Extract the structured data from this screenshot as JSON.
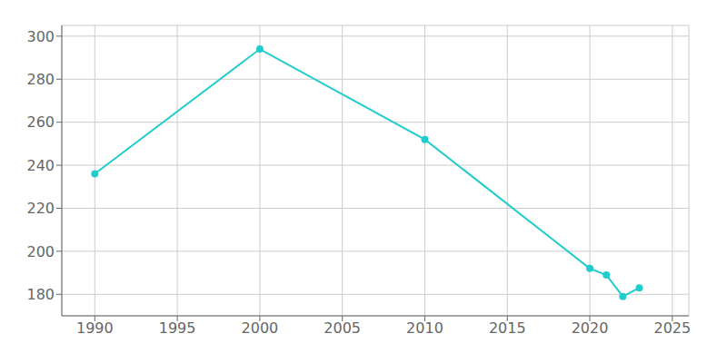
{
  "chart_data": {
    "type": "line",
    "x": [
      1990,
      2000,
      2010,
      2020,
      2021,
      2022,
      2023
    ],
    "values": [
      236,
      294,
      252,
      192,
      189,
      179,
      183
    ],
    "color": "#22CCCC",
    "marker": "circle",
    "xlim": [
      1988,
      2026
    ],
    "ylim": [
      170,
      305
    ],
    "xticks": [
      1990,
      1995,
      2000,
      2005,
      2010,
      2015,
      2020,
      2025
    ],
    "yticks": [
      180,
      200,
      220,
      240,
      260,
      280,
      300
    ],
    "grid": true
  }
}
